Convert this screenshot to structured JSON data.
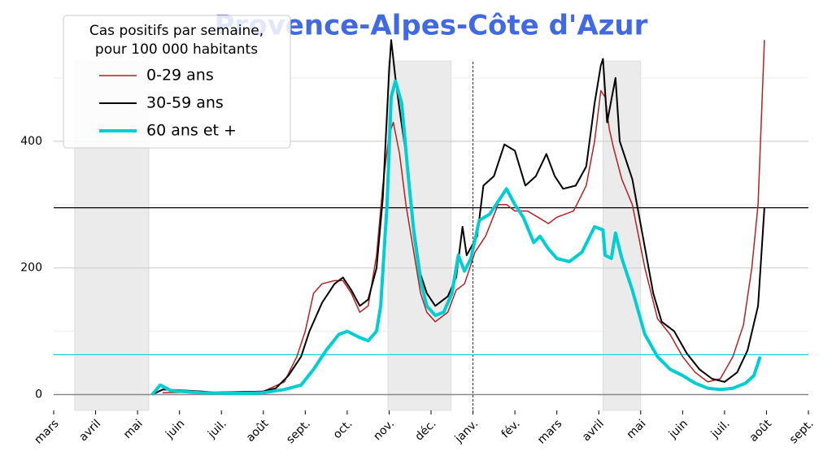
{
  "chart_data": {
    "type": "line",
    "title": "Provence-Alpes-Côte d'Azur",
    "title_color": "#4169e1",
    "legend_title": [
      "Cas positifs par semaine,",
      "pour 100 000 habitants"
    ],
    "legend": "upper left",
    "xlim": [
      0,
      18
    ],
    "xticks": [
      {
        "value": 0,
        "label": "mars"
      },
      {
        "value": 1,
        "label": "avril"
      },
      {
        "value": 2,
        "label": "mai"
      },
      {
        "value": 3,
        "label": "juin"
      },
      {
        "value": 4,
        "label": "juil."
      },
      {
        "value": 5,
        "label": "août"
      },
      {
        "value": 6,
        "label": "sept."
      },
      {
        "value": 7,
        "label": "oct."
      },
      {
        "value": 8,
        "label": "nov."
      },
      {
        "value": 9,
        "label": "déc."
      },
      {
        "value": 10,
        "label": "janv."
      },
      {
        "value": 11,
        "label": "fév."
      },
      {
        "value": 12,
        "label": "mars"
      },
      {
        "value": 13,
        "label": "avril"
      },
      {
        "value": 14,
        "label": "mai"
      },
      {
        "value": 15,
        "label": "juin"
      },
      {
        "value": 16,
        "label": "juil."
      },
      {
        "value": 17,
        "label": "août"
      },
      {
        "value": 18,
        "label": "sept."
      }
    ],
    "ylim": [
      -25,
      600
    ],
    "yticks": [
      0,
      200,
      400
    ],
    "minor_grid": [
      100,
      300,
      500
    ],
    "grid": true,
    "shaded": [
      [
        0.5,
        2.27
      ],
      [
        7.97,
        9.48
      ],
      [
        13.1,
        14.0
      ]
    ],
    "vline": 10,
    "hlines": [
      {
        "value": 295,
        "color": "#000000"
      },
      {
        "value": 63,
        "color": "#00ced1"
      }
    ],
    "series": [
      {
        "name": "0-29 ans",
        "color": "#b22222",
        "line_width": 1.5,
        "x": [
          2.6,
          3.5,
          5.0,
          5.5,
          5.8,
          6.0,
          6.2,
          6.4,
          6.7,
          6.9,
          7.1,
          7.3,
          7.5,
          7.7,
          7.85,
          8.0,
          8.1,
          8.25,
          8.4,
          8.6,
          8.75,
          8.9,
          9.1,
          9.4,
          9.6,
          9.8,
          10.05,
          10.3,
          10.6,
          10.8,
          11.0,
          11.3,
          11.55,
          11.8,
          12.0,
          12.4,
          12.7,
          12.9,
          13.05,
          13.15,
          13.25,
          13.35,
          13.55,
          13.8,
          14.1,
          14.4,
          14.7,
          15.0,
          15.3,
          15.6,
          15.9,
          16.2,
          16.45,
          16.65,
          16.8,
          16.95
        ],
        "values": [
          3,
          4,
          5,
          20,
          60,
          100,
          160,
          175,
          180,
          180,
          160,
          130,
          140,
          220,
          330,
          410,
          430,
          380,
          300,
          220,
          160,
          130,
          115,
          130,
          165,
          175,
          225,
          250,
          300,
          300,
          290,
          290,
          280,
          270,
          280,
          290,
          330,
          400,
          480,
          470,
          420,
          390,
          340,
          300,
          200,
          120,
          95,
          60,
          35,
          20,
          25,
          60,
          110,
          200,
          300,
          560
        ]
      },
      {
        "name": "30-59 ans",
        "color": "#000000",
        "line_width": 2,
        "x": [
          2.35,
          2.6,
          3.0,
          4.0,
          5.0,
          5.3,
          5.6,
          5.9,
          6.1,
          6.4,
          6.7,
          6.9,
          7.1,
          7.3,
          7.5,
          7.7,
          7.85,
          8.0,
          8.05,
          8.15,
          8.25,
          8.4,
          8.6,
          8.75,
          8.9,
          9.1,
          9.4,
          9.6,
          9.75,
          9.85,
          10.1,
          10.25,
          10.5,
          10.75,
          11.0,
          11.25,
          11.5,
          11.75,
          11.95,
          12.15,
          12.45,
          12.7,
          12.9,
          13.05,
          13.1,
          13.2,
          13.4,
          13.5,
          13.8,
          14.05,
          14.3,
          14.5,
          14.8,
          15.1,
          15.4,
          15.7,
          16.0,
          16.3,
          16.55,
          16.8,
          16.95
        ],
        "values": [
          0,
          8,
          7,
          3,
          5,
          10,
          30,
          60,
          100,
          145,
          175,
          185,
          165,
          140,
          150,
          200,
          310,
          510,
          560,
          500,
          450,
          380,
          260,
          190,
          160,
          140,
          155,
          185,
          265,
          220,
          250,
          330,
          345,
          395,
          385,
          330,
          345,
          380,
          345,
          325,
          330,
          360,
          460,
          520,
          530,
          430,
          500,
          400,
          340,
          250,
          160,
          115,
          100,
          65,
          40,
          25,
          20,
          35,
          70,
          140,
          295
        ]
      },
      {
        "name": "60 ans et +",
        "color": "#00ced1",
        "line_width": 4,
        "x": [
          2.35,
          2.54,
          2.8,
          3.5,
          4.5,
          5.0,
          5.5,
          5.9,
          6.2,
          6.5,
          6.8,
          7.0,
          7.3,
          7.5,
          7.7,
          7.8,
          7.95,
          8.05,
          8.15,
          8.3,
          8.45,
          8.6,
          8.75,
          8.9,
          9.1,
          9.3,
          9.5,
          9.65,
          9.8,
          9.95,
          10.15,
          10.4,
          10.65,
          10.8,
          11.0,
          11.2,
          11.45,
          11.6,
          11.8,
          12.0,
          12.3,
          12.6,
          12.9,
          13.1,
          13.15,
          13.3,
          13.4,
          13.55,
          13.8,
          14.1,
          14.4,
          14.7,
          15.0,
          15.3,
          15.6,
          15.9,
          16.2,
          16.5,
          16.7,
          16.85
        ],
        "values": [
          0,
          15,
          6,
          3,
          2,
          3,
          8,
          15,
          40,
          70,
          95,
          100,
          90,
          85,
          100,
          140,
          300,
          470,
          495,
          460,
          350,
          250,
          180,
          140,
          125,
          130,
          160,
          220,
          195,
          215,
          275,
          285,
          310,
          325,
          300,
          280,
          240,
          250,
          230,
          215,
          210,
          225,
          265,
          260,
          220,
          215,
          255,
          215,
          165,
          95,
          60,
          40,
          30,
          18,
          10,
          8,
          10,
          18,
          30,
          60
        ]
      }
    ]
  }
}
